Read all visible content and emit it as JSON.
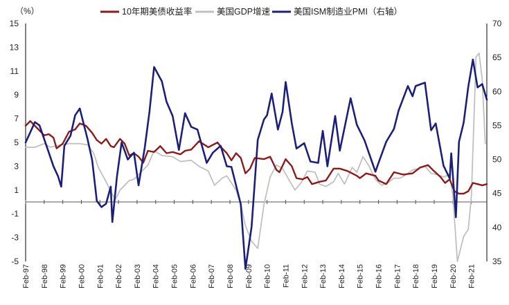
{
  "chart_data": {
    "type": "line",
    "unit_label": "（%）",
    "colors": {
      "y10": "#8B1A1A",
      "gdp": "#C0C0C0",
      "pmi": "#1B1F7A",
      "axis": "#000000",
      "negative_tick": "#D42020"
    },
    "x": {
      "start": "1997-02",
      "end": "2021-12",
      "tick_labels": [
        "Feb-97",
        "Feb-98",
        "Feb-99",
        "Feb-00",
        "Feb-01",
        "Feb-02",
        "Feb-03",
        "Feb-04",
        "Feb-05",
        "Feb-06",
        "Feb-07",
        "Feb-08",
        "Feb-09",
        "Feb-10",
        "Feb-11",
        "Feb-12",
        "Feb-13",
        "Feb-14",
        "Feb-15",
        "Feb-16",
        "Feb-17",
        "Feb-18",
        "Feb-19",
        "Feb-20",
        "Feb-21"
      ]
    },
    "y_left": {
      "min": -5,
      "max": 15,
      "ticks": [
        "15",
        "13",
        "11",
        "9",
        "7",
        "5",
        "3",
        "1",
        "-1",
        "-3",
        "-5"
      ],
      "zero_line": 0
    },
    "y_right": {
      "min": 35,
      "max": 70,
      "ticks": [
        "70",
        "65",
        "60",
        "55",
        "50",
        "45",
        "40",
        "35"
      ]
    },
    "series": [
      {
        "key": "y10",
        "name": "10年期美债收益率",
        "axis": "left",
        "points": [
          [
            "1997-02",
            6.4
          ],
          [
            "1997-05",
            6.8
          ],
          [
            "1997-08",
            6.4
          ],
          [
            "1997-11",
            6.0
          ],
          [
            "1998-02",
            5.6
          ],
          [
            "1998-05",
            5.7
          ],
          [
            "1998-08",
            5.4
          ],
          [
            "1998-10",
            4.5
          ],
          [
            "1999-02",
            4.9
          ],
          [
            "1999-06",
            5.9
          ],
          [
            "1999-10",
            6.1
          ],
          [
            "2000-01",
            6.6
          ],
          [
            "2000-05",
            6.4
          ],
          [
            "2000-09",
            5.8
          ],
          [
            "2000-12",
            5.2
          ],
          [
            "2001-03",
            4.9
          ],
          [
            "2001-06",
            5.3
          ],
          [
            "2001-09",
            4.7
          ],
          [
            "2001-11",
            4.6
          ],
          [
            "2002-03",
            5.3
          ],
          [
            "2002-06",
            4.9
          ],
          [
            "2002-09",
            3.9
          ],
          [
            "2002-12",
            4.1
          ],
          [
            "2003-03",
            3.8
          ],
          [
            "2003-06",
            3.3
          ],
          [
            "2003-09",
            4.3
          ],
          [
            "2004-01",
            4.2
          ],
          [
            "2004-05",
            4.7
          ],
          [
            "2004-09",
            4.1
          ],
          [
            "2005-01",
            4.2
          ],
          [
            "2005-06",
            4.0
          ],
          [
            "2005-09",
            4.3
          ],
          [
            "2006-01",
            4.4
          ],
          [
            "2006-06",
            5.1
          ],
          [
            "2006-12",
            4.6
          ],
          [
            "2007-06",
            5.0
          ],
          [
            "2007-09",
            4.5
          ],
          [
            "2007-12",
            4.1
          ],
          [
            "2008-03",
            3.5
          ],
          [
            "2008-06",
            4.1
          ],
          [
            "2008-09",
            3.7
          ],
          [
            "2008-12",
            2.4
          ],
          [
            "2009-03",
            2.8
          ],
          [
            "2009-06",
            3.7
          ],
          [
            "2009-12",
            3.6
          ],
          [
            "2010-04",
            3.8
          ],
          [
            "2010-08",
            2.7
          ],
          [
            "2010-10",
            2.5
          ],
          [
            "2011-02",
            3.6
          ],
          [
            "2011-06",
            3.0
          ],
          [
            "2011-09",
            2.0
          ],
          [
            "2012-01",
            1.9
          ],
          [
            "2012-04",
            2.1
          ],
          [
            "2012-07",
            1.5
          ],
          [
            "2012-12",
            1.7
          ],
          [
            "2013-04",
            1.8
          ],
          [
            "2013-09",
            2.8
          ],
          [
            "2014-01",
            2.8
          ],
          [
            "2014-06",
            2.6
          ],
          [
            "2014-12",
            2.2
          ],
          [
            "2015-02",
            2.0
          ],
          [
            "2015-06",
            2.4
          ],
          [
            "2015-12",
            2.2
          ],
          [
            "2016-02",
            1.8
          ],
          [
            "2016-07",
            1.5
          ],
          [
            "2016-12",
            2.5
          ],
          [
            "2017-06",
            2.3
          ],
          [
            "2017-12",
            2.4
          ],
          [
            "2018-05",
            2.9
          ],
          [
            "2018-10",
            3.1
          ],
          [
            "2019-01",
            2.7
          ],
          [
            "2019-06",
            2.1
          ],
          [
            "2019-09",
            1.6
          ],
          [
            "2019-12",
            1.9
          ],
          [
            "2020-03",
            0.9
          ],
          [
            "2020-06",
            0.7
          ],
          [
            "2020-09",
            0.7
          ],
          [
            "2020-12",
            0.9
          ],
          [
            "2021-03",
            1.6
          ],
          [
            "2021-06",
            1.5
          ],
          [
            "2021-09",
            1.4
          ],
          [
            "2021-12",
            1.5
          ]
        ]
      },
      {
        "key": "gdp",
        "name": "美国GDP增速",
        "axis": "left",
        "points": [
          [
            "1997-02",
            4.6
          ],
          [
            "1997-08",
            4.6
          ],
          [
            "1998-02",
            4.9
          ],
          [
            "1998-06",
            4.6
          ],
          [
            "1999-01",
            4.8
          ],
          [
            "1999-06",
            4.9
          ],
          [
            "2000-01",
            4.9
          ],
          [
            "2000-06",
            4.8
          ],
          [
            "2000-10",
            4.1
          ],
          [
            "2001-01",
            2.9
          ],
          [
            "2001-06",
            1.7
          ],
          [
            "2001-09",
            0.9
          ],
          [
            "2001-12",
            0.2
          ],
          [
            "2002-03",
            1.0
          ],
          [
            "2002-09",
            1.8
          ],
          [
            "2002-12",
            1.9
          ],
          [
            "2003-03",
            2.3
          ],
          [
            "2003-09",
            3.1
          ],
          [
            "2004-01",
            4.3
          ],
          [
            "2004-06",
            3.9
          ],
          [
            "2005-01",
            3.8
          ],
          [
            "2005-06",
            3.4
          ],
          [
            "2006-01",
            3.5
          ],
          [
            "2006-06",
            3.0
          ],
          [
            "2006-12",
            2.6
          ],
          [
            "2007-04",
            1.4
          ],
          [
            "2007-09",
            2.0
          ],
          [
            "2007-12",
            2.2
          ],
          [
            "2008-03",
            1.6
          ],
          [
            "2008-06",
            1.0
          ],
          [
            "2008-09",
            -0.2
          ],
          [
            "2008-12",
            -2.0
          ],
          [
            "2009-04",
            -3.3
          ],
          [
            "2009-08",
            -3.9
          ],
          [
            "2009-12",
            -0.2
          ],
          [
            "2010-04",
            2.1
          ],
          [
            "2010-08",
            3.1
          ],
          [
            "2010-12",
            2.8
          ],
          [
            "2011-04",
            1.9
          ],
          [
            "2011-08",
            1.0
          ],
          [
            "2011-12",
            1.6
          ],
          [
            "2012-04",
            2.6
          ],
          [
            "2012-09",
            2.5
          ],
          [
            "2012-12",
            1.5
          ],
          [
            "2013-04",
            1.3
          ],
          [
            "2013-09",
            1.7
          ],
          [
            "2013-12",
            2.4
          ],
          [
            "2014-04",
            1.5
          ],
          [
            "2014-09",
            2.9
          ],
          [
            "2014-12",
            2.5
          ],
          [
            "2015-04",
            3.8
          ],
          [
            "2015-08",
            3.0
          ],
          [
            "2015-12",
            1.9
          ],
          [
            "2016-04",
            1.4
          ],
          [
            "2016-08",
            1.6
          ],
          [
            "2016-12",
            2.0
          ],
          [
            "2017-04",
            2.0
          ],
          [
            "2017-08",
            2.3
          ],
          [
            "2017-12",
            2.7
          ],
          [
            "2018-04",
            2.8
          ],
          [
            "2018-08",
            3.0
          ],
          [
            "2018-12",
            2.4
          ],
          [
            "2019-04",
            2.3
          ],
          [
            "2019-08",
            2.1
          ],
          [
            "2019-12",
            2.3
          ],
          [
            "2020-02",
            0.6
          ],
          [
            "2020-05",
            -5.0
          ],
          [
            "2020-09",
            -2.9
          ],
          [
            "2020-12",
            -2.3
          ],
          [
            "2021-02",
            0.5
          ],
          [
            "2021-05",
            12.2
          ],
          [
            "2021-07",
            12.5
          ],
          [
            "2021-09",
            10.3
          ],
          [
            "2021-11",
            4.9
          ]
        ]
      },
      {
        "key": "pmi",
        "name": "美国ISM制造业PMI（右轴）",
        "axis": "right",
        "points": [
          [
            "1997-02",
            52.5
          ],
          [
            "1997-05",
            54.0
          ],
          [
            "1997-08",
            55.5
          ],
          [
            "1997-11",
            55.0
          ],
          [
            "1998-02",
            53.0
          ],
          [
            "1998-05",
            51.0
          ],
          [
            "1998-08",
            49.0
          ],
          [
            "1998-11",
            47.5
          ],
          [
            "1999-01",
            46.0
          ],
          [
            "1999-03",
            52.0
          ],
          [
            "1999-07",
            53.5
          ],
          [
            "1999-10",
            56.5
          ],
          [
            "2000-01",
            57.5
          ],
          [
            "2000-06",
            53.0
          ],
          [
            "2000-09",
            49.9
          ],
          [
            "2000-12",
            43.9
          ],
          [
            "2001-03",
            43.0
          ],
          [
            "2001-06",
            43.5
          ],
          [
            "2001-09",
            46.0
          ],
          [
            "2001-10",
            40.8
          ],
          [
            "2002-01",
            47.5
          ],
          [
            "2002-04",
            52.5
          ],
          [
            "2002-08",
            50.0
          ],
          [
            "2002-12",
            51.0
          ],
          [
            "2003-03",
            46.2
          ],
          [
            "2003-07",
            51.8
          ],
          [
            "2003-10",
            57.0
          ],
          [
            "2004-01",
            63.6
          ],
          [
            "2004-06",
            61.5
          ],
          [
            "2004-09",
            58.5
          ],
          [
            "2005-01",
            56.4
          ],
          [
            "2005-05",
            51.4
          ],
          [
            "2005-09",
            56.8
          ],
          [
            "2006-01",
            54.8
          ],
          [
            "2006-05",
            54.4
          ],
          [
            "2006-11",
            49.5
          ],
          [
            "2007-03",
            51.0
          ],
          [
            "2007-08",
            52.0
          ],
          [
            "2007-12",
            49.0
          ],
          [
            "2008-03",
            48.9
          ],
          [
            "2008-09",
            43.4
          ],
          [
            "2008-12",
            33.9
          ],
          [
            "2009-04",
            40.1
          ],
          [
            "2009-08",
            52.9
          ],
          [
            "2009-12",
            55.9
          ],
          [
            "2010-02",
            56.5
          ],
          [
            "2010-05",
            59.7
          ],
          [
            "2010-09",
            54.4
          ],
          [
            "2010-12",
            57.0
          ],
          [
            "2011-02",
            61.4
          ],
          [
            "2011-06",
            55.3
          ],
          [
            "2011-09",
            51.6
          ],
          [
            "2012-02",
            52.4
          ],
          [
            "2012-06",
            49.7
          ],
          [
            "2012-11",
            49.5
          ],
          [
            "2013-02",
            54.2
          ],
          [
            "2013-05",
            49.0
          ],
          [
            "2013-10",
            56.4
          ],
          [
            "2014-01",
            51.3
          ],
          [
            "2014-08",
            59.0
          ],
          [
            "2014-12",
            55.1
          ],
          [
            "2015-05",
            52.8
          ],
          [
            "2015-12",
            48.2
          ],
          [
            "2016-02",
            49.5
          ],
          [
            "2016-07",
            52.6
          ],
          [
            "2016-12",
            54.5
          ],
          [
            "2017-03",
            57.2
          ],
          [
            "2017-09",
            60.8
          ],
          [
            "2017-12",
            59.3
          ],
          [
            "2018-02",
            60.8
          ],
          [
            "2018-08",
            61.3
          ],
          [
            "2018-12",
            54.3
          ],
          [
            "2019-03",
            55.3
          ],
          [
            "2019-08",
            49.1
          ],
          [
            "2019-12",
            47.2
          ],
          [
            "2020-01",
            50.9
          ],
          [
            "2020-04",
            41.5
          ],
          [
            "2020-06",
            52.6
          ],
          [
            "2020-09",
            55.4
          ],
          [
            "2020-12",
            60.7
          ],
          [
            "2021-03",
            64.7
          ],
          [
            "2021-06",
            60.6
          ],
          [
            "2021-09",
            61.1
          ],
          [
            "2021-12",
            58.8
          ]
        ]
      }
    ]
  }
}
